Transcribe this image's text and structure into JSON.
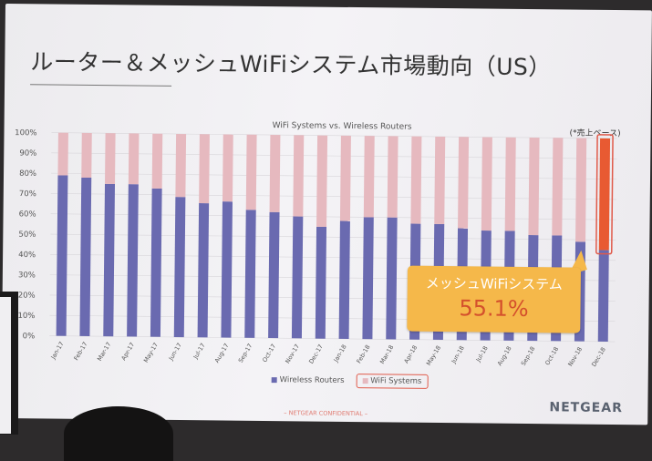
{
  "slide": {
    "title": "ルーター＆メッシュWiFiシステム市場動向（US）",
    "basis_note": "(*売上ベース)",
    "callout_label": "メッシュWiFiシステム",
    "callout_value": "55.1%",
    "confidential": "– NETGEAR CONFIDENTIAL –",
    "logo": "NETGEAR"
  },
  "colors": {
    "wireless_routers": "#6a6ab0",
    "wifi_systems": "#e6b9bf",
    "highlight_bar": "#e85a32",
    "highlight_frame": "#e05a4a"
  },
  "chart_data": {
    "type": "bar",
    "stacked": true,
    "title": "WiFi Systems vs. Wireless Routers",
    "categories": [
      "Jan-17",
      "Feb-17",
      "Mar-17",
      "Apr-17",
      "May-17",
      "Jun-17",
      "Jul-17",
      "Aug-17",
      "Sep-17",
      "Oct-17",
      "Nov-17",
      "Dec-17",
      "Jan-18",
      "Feb-18",
      "Mar-18",
      "Apr-18",
      "May-18",
      "Jun-18",
      "Jul-18",
      "Aug-18",
      "Sep-18",
      "Oct-18",
      "Nov-18",
      "Dec-18"
    ],
    "series": [
      {
        "name": "Wireless Routers",
        "values": [
          79,
          78,
          75,
          75,
          73,
          69,
          66,
          67,
          63,
          62,
          60,
          55,
          58,
          60,
          60,
          57,
          57,
          55,
          54,
          54,
          52,
          52,
          49,
          45
        ]
      },
      {
        "name": "WiFi Systems",
        "values": [
          21,
          22,
          25,
          25,
          27,
          31,
          34,
          33,
          37,
          38,
          40,
          45,
          42,
          40,
          40,
          43,
          43,
          45,
          46,
          46,
          48,
          48,
          51,
          55
        ]
      }
    ],
    "yticks": [
      "0%",
      "10%",
      "20%",
      "30%",
      "40%",
      "50%",
      "60%",
      "70%",
      "80%",
      "90%",
      "100%"
    ],
    "ylim": [
      0,
      100
    ],
    "highlight_category": "Dec-18",
    "legend": [
      "Wireless Routers",
      "WiFi Systems"
    ],
    "legend_position": "bottom"
  }
}
